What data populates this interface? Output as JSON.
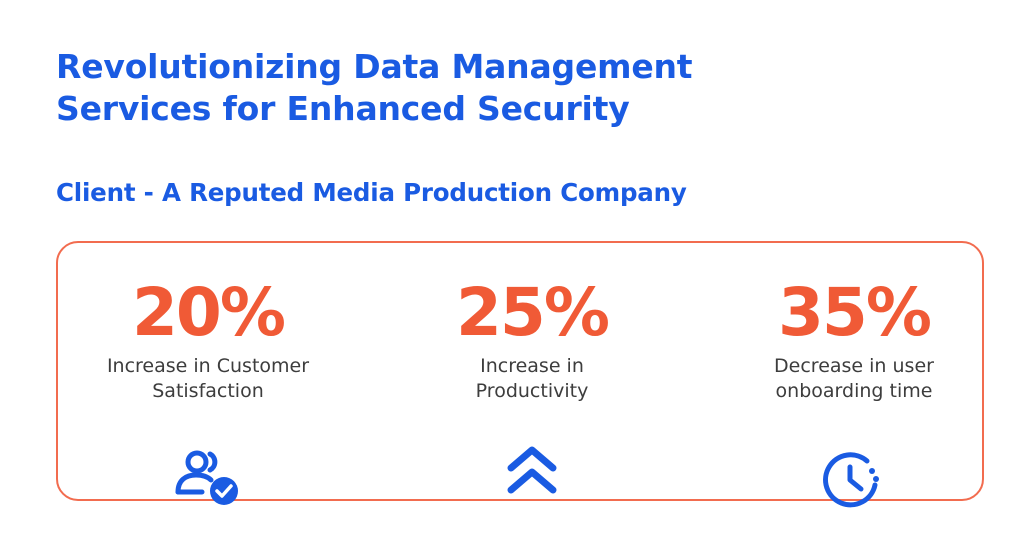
{
  "header": {
    "title_line_1": "Revolutionizing Data Management",
    "title_line_2": "Services for Enhanced Security",
    "subtitle": "Client - A Reputed Media Production Company"
  },
  "stats": [
    {
      "value": "20%",
      "label_line_1": "Increase in Customer",
      "label_line_2": "Satisfaction",
      "icon": "users-check-icon"
    },
    {
      "value": "25%",
      "label_line_1": "Increase in",
      "label_line_2": "Productivity",
      "icon": "double-chevron-up-icon"
    },
    {
      "value": "35%",
      "label_line_1": "Decrease in user",
      "label_line_2": "onboarding time",
      "icon": "clock-icon"
    }
  ],
  "colors": {
    "heading_blue": "#1a5be2",
    "accent_orange": "#f05a36",
    "card_border": "#f26c4f",
    "icon_blue": "#1a5be2",
    "label_gray": "#3d3d3d"
  }
}
